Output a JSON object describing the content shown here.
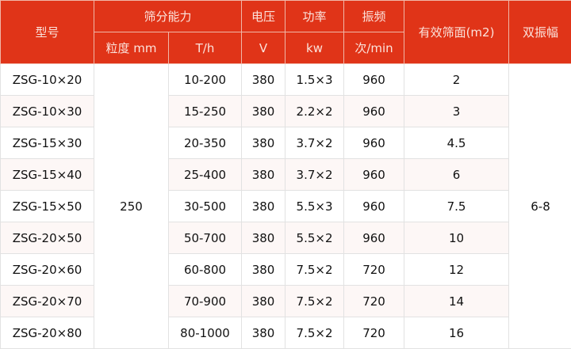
{
  "header": {
    "model": "型号",
    "capacity_group": "筛分能力",
    "voltage": "电压",
    "power": "功率",
    "frequency": "振频",
    "screen_area": "有效筛面(m2)",
    "amplitude": "双振幅",
    "granularity_unit": "粒度 mm",
    "throughput_unit": "T/h",
    "voltage_unit": "V",
    "power_unit": "kw",
    "frequency_unit": "次/min"
  },
  "shared": {
    "granularity": "250",
    "amplitude": "6-8"
  },
  "rows": [
    {
      "model": "ZSG-10×20",
      "throughput": "10-200",
      "voltage": "380",
      "power": "1.5×3",
      "frequency": "960",
      "area": "2"
    },
    {
      "model": "ZSG-10×30",
      "throughput": "15-250",
      "voltage": "380",
      "power": "2.2×2",
      "frequency": "960",
      "area": "3"
    },
    {
      "model": "ZSG-15×30",
      "throughput": "20-350",
      "voltage": "380",
      "power": "3.7×2",
      "frequency": "960",
      "area": "4.5"
    },
    {
      "model": "ZSG-15×40",
      "throughput": "25-400",
      "voltage": "380",
      "power": "3.7×2",
      "frequency": "960",
      "area": "6"
    },
    {
      "model": "ZSG-15×50",
      "throughput": "30-500",
      "voltage": "380",
      "power": "5.5×3",
      "frequency": "960",
      "area": "7.5"
    },
    {
      "model": "ZSG-20×50",
      "throughput": "50-700",
      "voltage": "380",
      "power": "5.5×2",
      "frequency": "960",
      "area": "10"
    },
    {
      "model": "ZSG-20×60",
      "throughput": "60-800",
      "voltage": "380",
      "power": "7.5×2",
      "frequency": "720",
      "area": "12"
    },
    {
      "model": "ZSG-20×70",
      "throughput": "70-900",
      "voltage": "380",
      "power": "7.5×2",
      "frequency": "720",
      "area": "14"
    },
    {
      "model": "ZSG-20×80",
      "throughput": "80-1000",
      "voltage": "380",
      "power": "7.5×2",
      "frequency": "720",
      "area": "16"
    }
  ],
  "colors": {
    "header_bg": "#e03418",
    "header_text": "#fbe3dc",
    "alt_row": "#fdf7f6",
    "border": "#e2e2e2"
  }
}
